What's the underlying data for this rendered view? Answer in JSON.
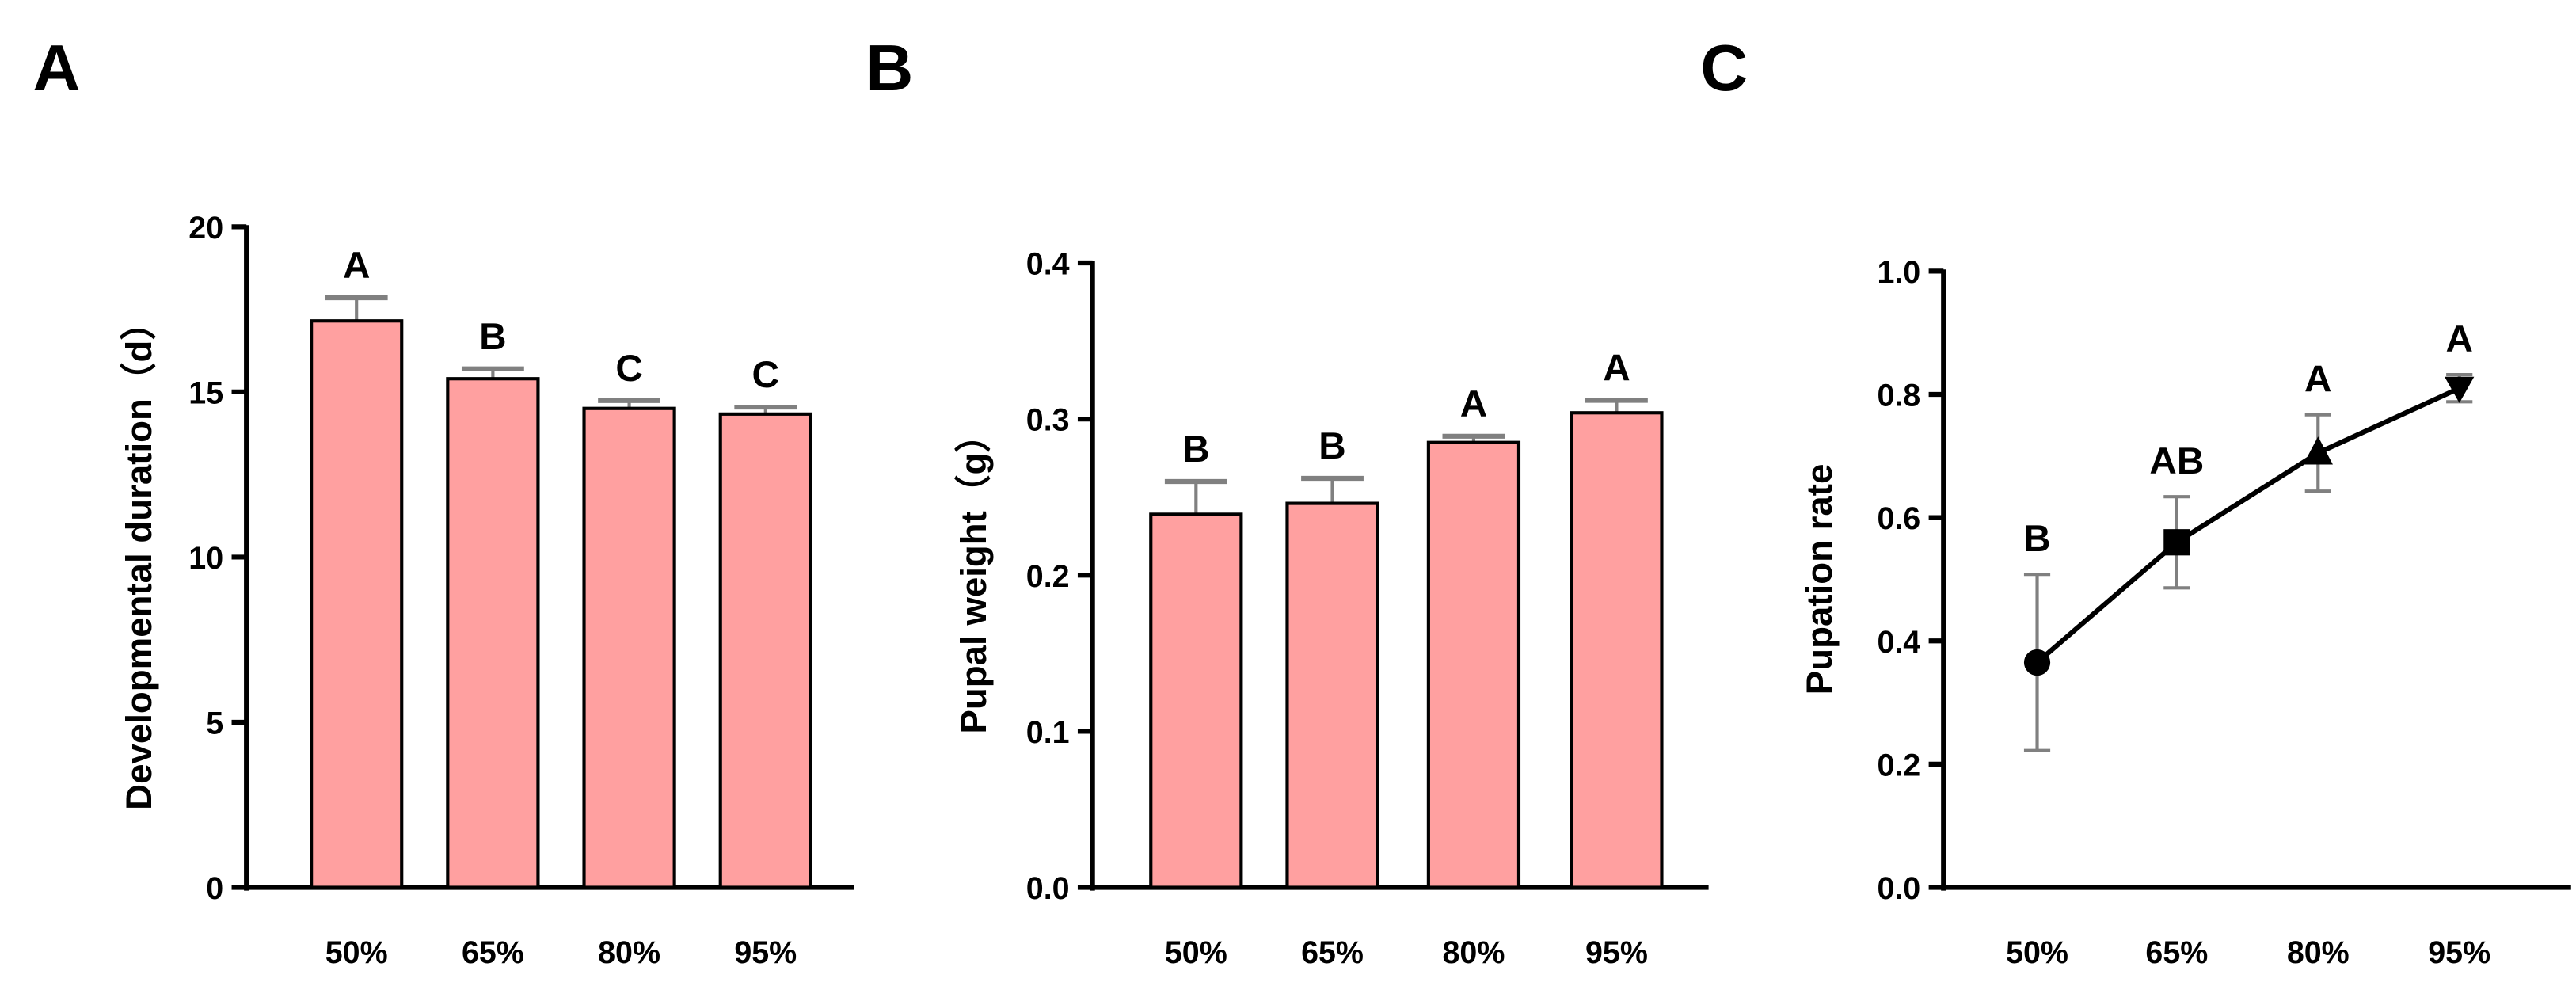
{
  "chart_data": [
    {
      "panel_label": "A",
      "type": "bar",
      "categories": [
        "50%",
        "65%",
        "80%",
        "95%"
      ],
      "values": [
        17.15,
        15.4,
        14.5,
        14.33
      ],
      "error_plus": [
        0.7,
        0.3,
        0.24,
        0.21
      ],
      "significance": [
        "A",
        "B",
        "C",
        "C"
      ],
      "ylabel": "Developmental duration（d）",
      "xlabel": "",
      "ylim": [
        0,
        20
      ],
      "yticks": [
        "0",
        "5",
        "10",
        "15",
        "20"
      ],
      "bar_color": "#FFA0A0",
      "error_color": "#808080",
      "grid": false
    },
    {
      "panel_label": "B",
      "type": "bar",
      "categories": [
        "50%",
        "65%",
        "80%",
        "95%"
      ],
      "values": [
        0.239,
        0.246,
        0.285,
        0.304
      ],
      "error_plus": [
        0.021,
        0.016,
        0.004,
        0.008
      ],
      "significance": [
        "B",
        "B",
        "A",
        "A"
      ],
      "ylabel": "Pupal weight（g）",
      "xlabel": "",
      "ylim": [
        0,
        0.4
      ],
      "yticks": [
        "0.0",
        "0.1",
        "0.2",
        "0.3",
        "0.4"
      ],
      "bar_color": "#FFA0A0",
      "error_color": "#808080",
      "grid": false
    },
    {
      "panel_label": "C",
      "type": "line",
      "categories": [
        "50%",
        "65%",
        "80%",
        "95%"
      ],
      "values": [
        0.365,
        0.56,
        0.705,
        0.81
      ],
      "error": [
        0.143,
        0.074,
        0.062,
        0.022
      ],
      "markers": [
        "circle",
        "square",
        "triangle-up",
        "triangle-down"
      ],
      "significance": [
        "B",
        "AB",
        "A",
        "A"
      ],
      "ylabel": "Pupation rate",
      "xlabel": "",
      "ylim": [
        0,
        1.0
      ],
      "yticks": [
        "0.0",
        "0.2",
        "0.4",
        "0.6",
        "0.8",
        "1.0"
      ],
      "line_color": "#000000",
      "error_color": "#808080",
      "grid": false
    }
  ]
}
